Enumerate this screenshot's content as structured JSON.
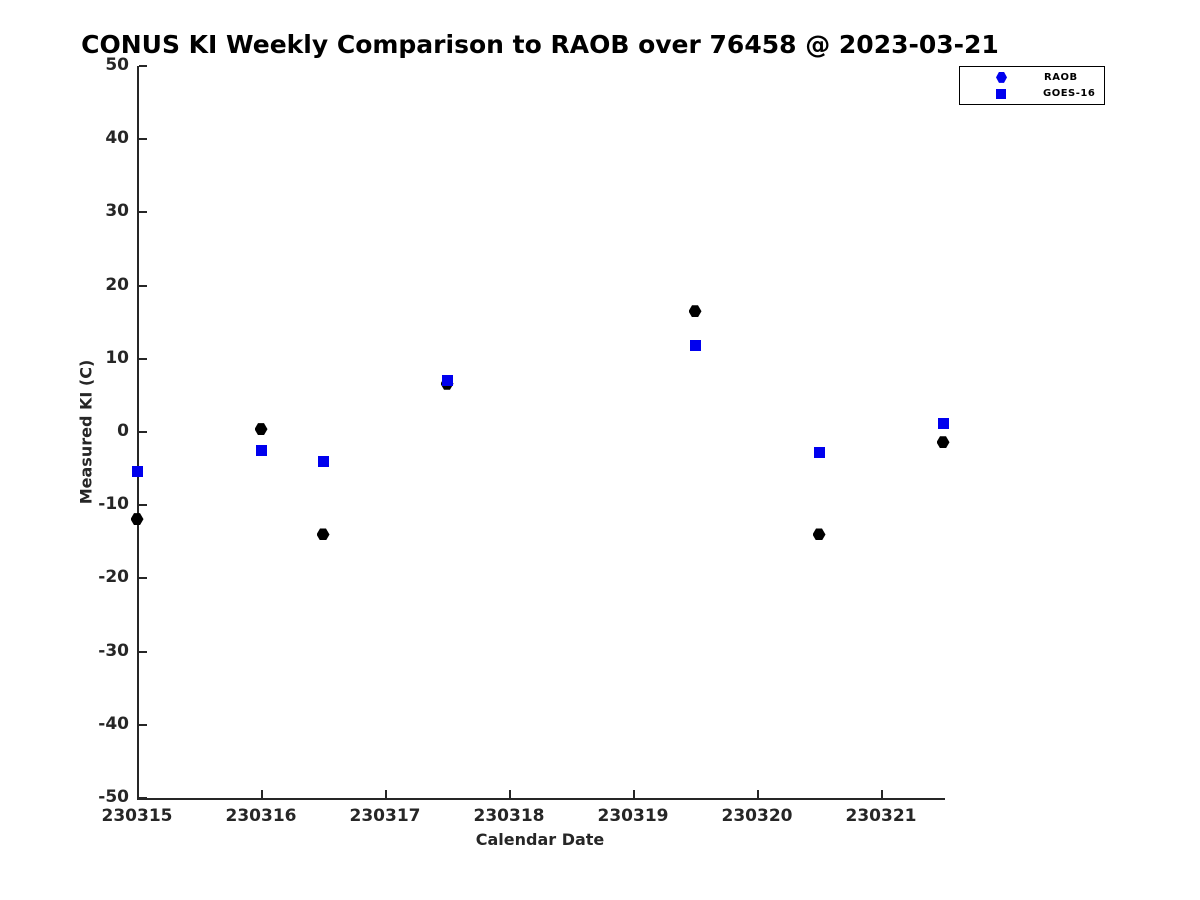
{
  "chart_data": {
    "type": "scatter",
    "title": "CONUS KI Weekly Comparison to RAOB over 76458 @ 2023-03-21",
    "xlabel": "Calendar Date",
    "ylabel": "Measured KI (C)",
    "xlim": [
      230315,
      230321.5
    ],
    "ylim": [
      -50,
      50
    ],
    "xticks": [
      230315,
      230316,
      230317,
      230318,
      230319,
      230320,
      230321
    ],
    "yticks": [
      50,
      40,
      30,
      20,
      10,
      0,
      -10,
      -20,
      -30,
      -40,
      -50
    ],
    "grid": false,
    "legend": {
      "position": "top-right",
      "entries": [
        {
          "label": "RAOB",
          "marker": "hexagon",
          "color": "#0000ee"
        },
        {
          "label": "GOES-16",
          "marker": "square",
          "color": "#0000ee"
        }
      ]
    },
    "series": [
      {
        "name": "RAOB",
        "marker": "hexagon",
        "color": "#000000",
        "x": [
          230315.0,
          230316.0,
          230316.5,
          230317.5,
          230319.5,
          230320.5,
          230321.5
        ],
        "y": [
          -11.9,
          0.4,
          -14.0,
          6.6,
          16.5,
          -14.0,
          -1.4
        ]
      },
      {
        "name": "GOES-16",
        "marker": "square",
        "color": "#0000ee",
        "x": [
          230315.0,
          230316.0,
          230316.5,
          230317.5,
          230319.5,
          230320.5,
          230321.5
        ],
        "y": [
          -5.4,
          -2.5,
          -4.0,
          7.0,
          11.8,
          -2.8,
          1.1
        ]
      }
    ]
  }
}
